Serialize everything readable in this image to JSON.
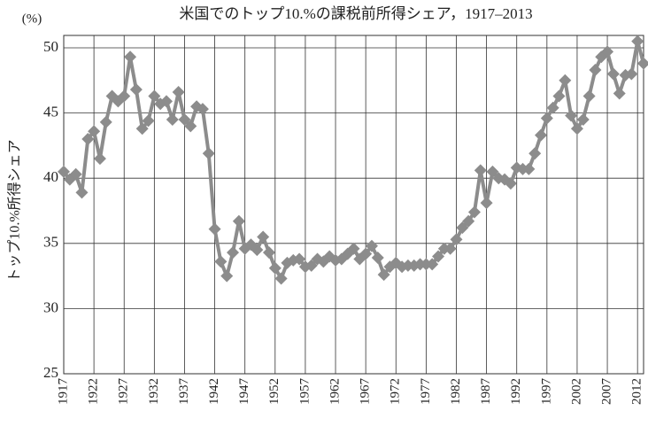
{
  "chart_data": {
    "type": "line",
    "title": "米国でのトップ10.%の課税前所得シェア，1917–2013",
    "y_label": "トップ10.%所得シェア",
    "y_unit": "(%)",
    "color": "#8c8c8c",
    "grid": true,
    "x": [
      1917,
      1918,
      1919,
      1920,
      1921,
      1922,
      1923,
      1924,
      1925,
      1926,
      1927,
      1928,
      1929,
      1930,
      1931,
      1932,
      1933,
      1934,
      1935,
      1936,
      1937,
      1938,
      1939,
      1940,
      1941,
      1942,
      1943,
      1944,
      1945,
      1946,
      1947,
      1948,
      1949,
      1950,
      1951,
      1952,
      1953,
      1954,
      1955,
      1956,
      1957,
      1958,
      1959,
      1960,
      1961,
      1962,
      1963,
      1964,
      1965,
      1966,
      1967,
      1968,
      1969,
      1970,
      1971,
      1972,
      1973,
      1974,
      1975,
      1976,
      1977,
      1978,
      1979,
      1980,
      1981,
      1982,
      1983,
      1984,
      1985,
      1986,
      1987,
      1988,
      1989,
      1990,
      1991,
      1992,
      1993,
      1994,
      1995,
      1996,
      1997,
      1998,
      1999,
      2000,
      2001,
      2002,
      2003,
      2004,
      2005,
      2006,
      2007,
      2008,
      2009,
      2010,
      2011,
      2012,
      2013
    ],
    "values": [
      40.5,
      39.9,
      40.3,
      38.9,
      43.0,
      43.6,
      41.5,
      44.3,
      46.3,
      45.9,
      46.3,
      49.3,
      46.8,
      43.8,
      44.4,
      46.3,
      45.7,
      45.9,
      44.5,
      46.6,
      44.5,
      44.0,
      45.5,
      45.3,
      41.9,
      36.1,
      33.6,
      32.5,
      34.3,
      36.7,
      34.6,
      34.9,
      34.5,
      35.5,
      34.3,
      33.1,
      32.3,
      33.5,
      33.7,
      33.8,
      33.2,
      33.3,
      33.8,
      33.6,
      34.0,
      33.7,
      33.8,
      34.2,
      34.6,
      33.8,
      34.2,
      34.8,
      33.9,
      32.6,
      33.2,
      33.5,
      33.2,
      33.3,
      33.3,
      33.4,
      33.4,
      33.4,
      34.0,
      34.6,
      34.6,
      35.3,
      36.2,
      36.7,
      37.4,
      40.6,
      38.1,
      40.5,
      40.0,
      39.9,
      39.6,
      40.8,
      40.7,
      40.7,
      41.9,
      43.3,
      44.6,
      45.4,
      46.3,
      47.5,
      44.8,
      43.8,
      44.5,
      46.3,
      48.3,
      49.3,
      49.7,
      48.0,
      46.5,
      47.9,
      48.0,
      50.5,
      48.8
    ],
    "xlim": [
      1917,
      2013
    ],
    "xticks": [
      1917,
      1922,
      1927,
      1932,
      1937,
      1942,
      1947,
      1952,
      1957,
      1962,
      1967,
      1972,
      1977,
      1982,
      1987,
      1992,
      1997,
      2002,
      2007,
      2012
    ],
    "ylim": [
      25,
      50
    ],
    "yticks": [
      25,
      30,
      35,
      40,
      45,
      50
    ]
  }
}
